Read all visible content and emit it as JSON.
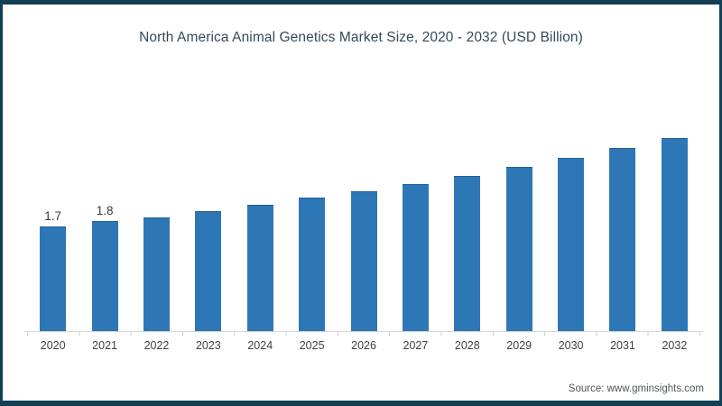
{
  "chart_data": {
    "type": "bar",
    "title": "North America Animal Genetics Market Size, 2020 - 2032 (USD Billion)",
    "categories": [
      "2020",
      "2021",
      "2022",
      "2023",
      "2024",
      "2025",
      "2026",
      "2027",
      "2028",
      "2029",
      "2030",
      "2031",
      "2032"
    ],
    "values": [
      1.7,
      1.8,
      1.86,
      1.96,
      2.06,
      2.17,
      2.28,
      2.4,
      2.53,
      2.67,
      2.82,
      2.98,
      3.15
    ],
    "data_labels": [
      "1.7",
      "1.8",
      "",
      "",
      "",
      "",
      "",
      "",
      "",
      "",
      "",
      "",
      ""
    ],
    "xlabel": "",
    "ylabel": "",
    "ylim": [
      0,
      4
    ],
    "grid": false,
    "legend_position": "none",
    "bar_color": "#2e77b6",
    "bar_top_edge_color": "#1f5f97",
    "axis_color": "#d6d6d6"
  },
  "footer": {
    "source": "Source: www.gminsights.com"
  },
  "colors": {
    "frame_border": "#123f54",
    "background": "#ffffff",
    "title_text": "#36495a",
    "label_text": "#3f3f3f",
    "source_text": "#4f565c"
  }
}
